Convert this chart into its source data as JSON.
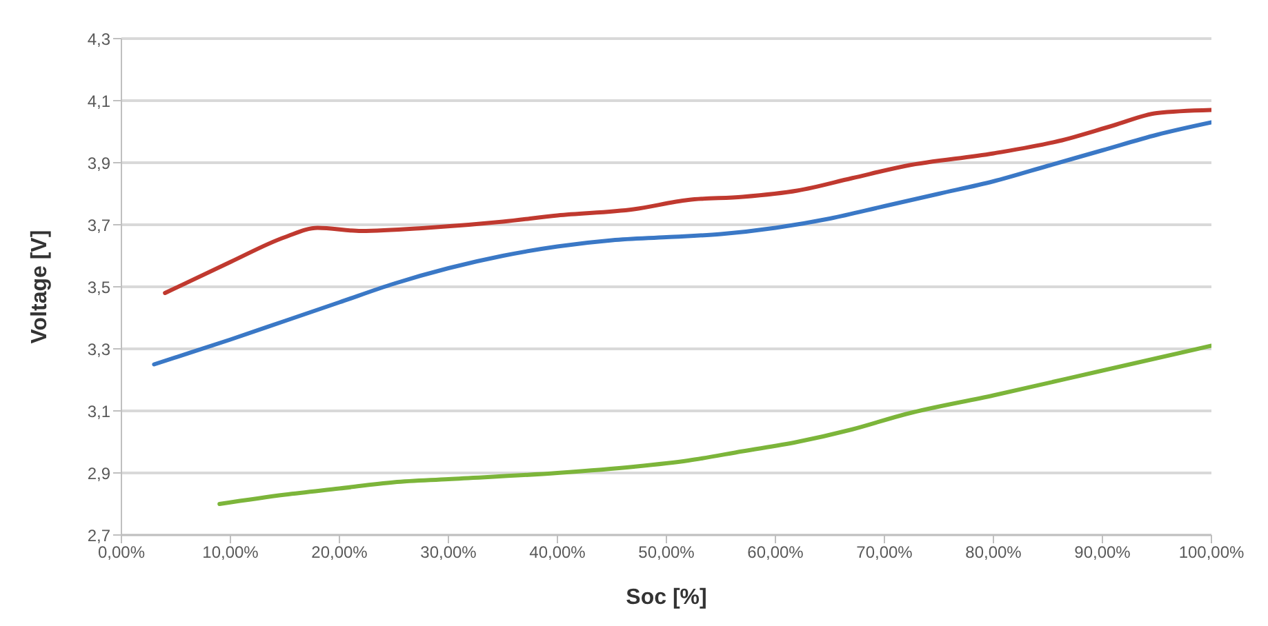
{
  "chart_data": {
    "type": "line",
    "xlabel": "Soc [%]",
    "ylabel": "Voltage [V]",
    "xlim": [
      0,
      100
    ],
    "xticks": [
      {
        "value": 0,
        "label": "0,00%"
      },
      {
        "value": 10,
        "label": "10,00%"
      },
      {
        "value": 20,
        "label": "20,00%"
      },
      {
        "value": 30,
        "label": "30,00%"
      },
      {
        "value": 40,
        "label": "40,00%"
      },
      {
        "value": 50,
        "label": "50,00%"
      },
      {
        "value": 60,
        "label": "60,00%"
      },
      {
        "value": 70,
        "label": "70,00%"
      },
      {
        "value": 80,
        "label": "80,00%"
      },
      {
        "value": 90,
        "label": "90,00%"
      },
      {
        "value": 100,
        "label": "100,00%"
      }
    ],
    "ylim": [
      2.7,
      4.3
    ],
    "yticks": [
      {
        "value": 2.7,
        "label": "2,7"
      },
      {
        "value": 2.9,
        "label": "2,9"
      },
      {
        "value": 3.1,
        "label": "3,1"
      },
      {
        "value": 3.3,
        "label": "3,3"
      },
      {
        "value": 3.5,
        "label": "3,5"
      },
      {
        "value": 3.7,
        "label": "3,7"
      },
      {
        "value": 3.9,
        "label": "3,9"
      },
      {
        "value": 4.1,
        "label": "4,1"
      },
      {
        "value": 4.3,
        "label": "4,3"
      }
    ],
    "grid": "y",
    "marker": "none",
    "line_style": "solid",
    "series": [
      {
        "color": "#c0392f",
        "x": [
          4,
          10,
          15,
          18,
          22,
          28,
          35,
          40,
          47,
          52,
          57,
          62,
          67,
          72,
          80,
          86,
          91,
          95,
          100
        ],
        "values": [
          3.48,
          3.58,
          3.66,
          3.69,
          3.68,
          3.69,
          3.71,
          3.73,
          3.75,
          3.78,
          3.79,
          3.81,
          3.85,
          3.89,
          3.93,
          3.97,
          4.02,
          4.06,
          4.07
        ]
      },
      {
        "color": "#3a78c6",
        "x": [
          3,
          10,
          15,
          20,
          25,
          30,
          35,
          40,
          45,
          50,
          55,
          60,
          65,
          70,
          75,
          80,
          85,
          90,
          95,
          100
        ],
        "values": [
          3.25,
          3.33,
          3.39,
          3.45,
          3.51,
          3.56,
          3.6,
          3.63,
          3.65,
          3.66,
          3.67,
          3.69,
          3.72,
          3.76,
          3.8,
          3.84,
          3.89,
          3.94,
          3.99,
          4.03
        ]
      },
      {
        "color": "#7cb53a",
        "x": [
          9,
          15,
          20,
          25,
          30,
          40,
          47,
          52,
          57,
          62,
          67,
          72,
          80,
          90,
          100
        ],
        "values": [
          2.8,
          2.83,
          2.85,
          2.87,
          2.88,
          2.9,
          2.92,
          2.94,
          2.97,
          3.0,
          3.04,
          3.09,
          3.15,
          3.23,
          3.31
        ]
      }
    ]
  }
}
